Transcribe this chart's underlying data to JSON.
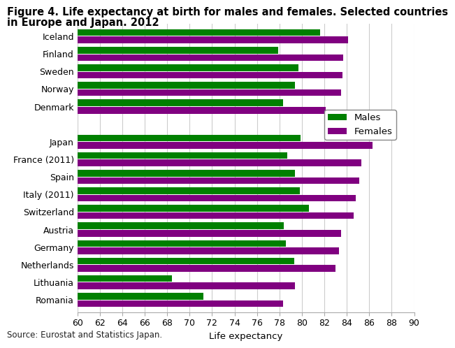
{
  "title_line1": "Figure 4. Life expectancy at birth for males and females. Selected countries",
  "title_line2": "in Europe and Japan. 2012",
  "xlabel": "Life expectancy",
  "source": "Source: Eurostat and Statistics Japan.",
  "countries": [
    "Iceland",
    "Finland",
    "Sweden",
    "Norway",
    "Denmark",
    "",
    "Japan",
    "France (2011)",
    "Spain",
    "Italy (2011)",
    "Switzerland",
    "Austria",
    "Germany",
    "Netherlands",
    "Lithuania",
    "Romania"
  ],
  "males": [
    81.6,
    77.9,
    79.7,
    79.4,
    78.3,
    null,
    79.9,
    78.7,
    79.4,
    79.8,
    80.6,
    78.4,
    78.6,
    79.3,
    68.4,
    71.2
  ],
  "females": [
    84.1,
    83.7,
    83.6,
    83.5,
    82.1,
    null,
    86.3,
    85.3,
    85.1,
    84.8,
    84.6,
    83.5,
    83.3,
    83.0,
    79.4,
    78.3
  ],
  "male_color": "#008000",
  "female_color": "#800080",
  "xlim": [
    60,
    90
  ],
  "xticks": [
    60,
    62,
    64,
    66,
    68,
    70,
    72,
    74,
    76,
    78,
    80,
    82,
    84,
    86,
    88,
    90
  ],
  "bar_height": 0.38,
  "title_fontsize": 10.5,
  "axis_fontsize": 9.5,
  "tick_fontsize": 9,
  "legend_fontsize": 9.5,
  "background_color": "#ffffff",
  "grid_color": "#cccccc"
}
